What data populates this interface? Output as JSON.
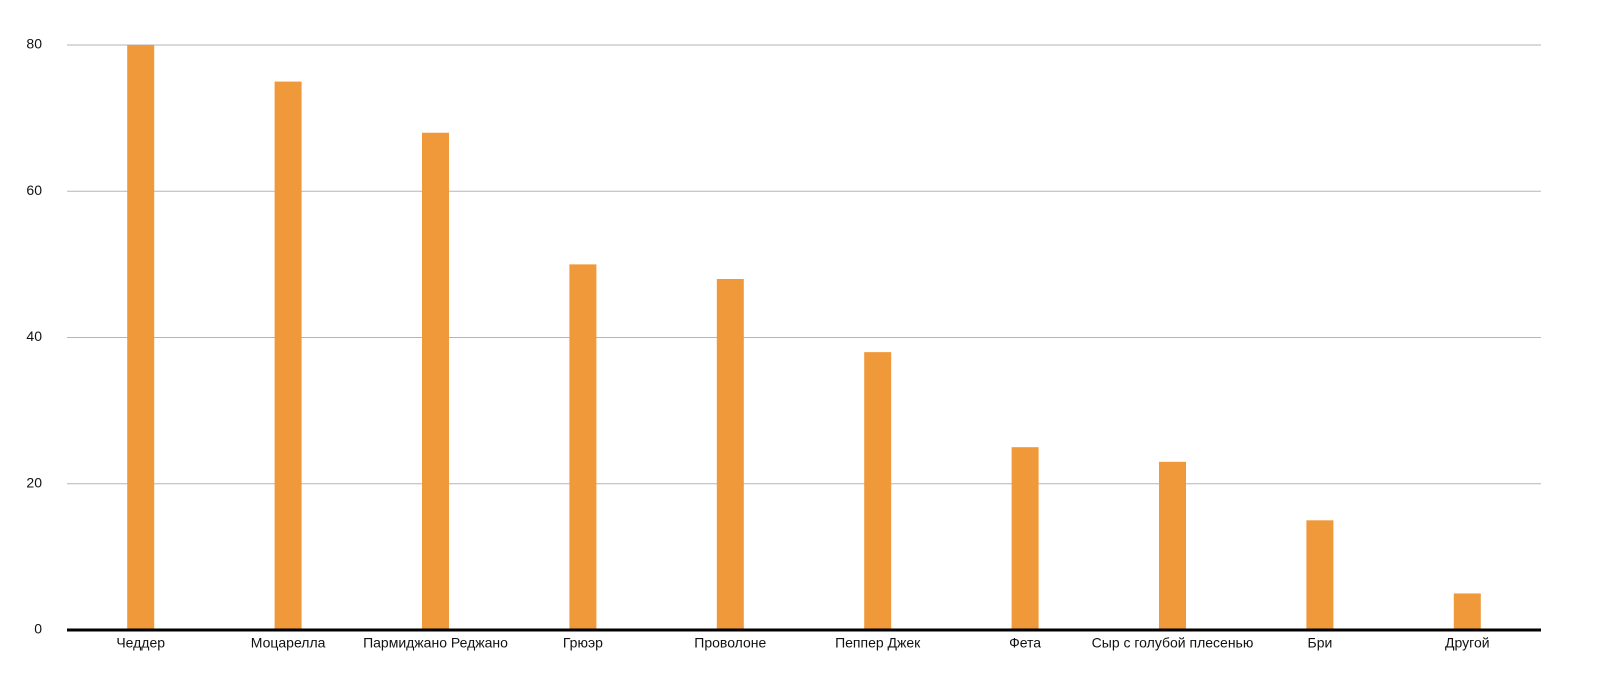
{
  "chart_data": {
    "type": "bar",
    "categories": [
      "Чеддер",
      "Моцарелла",
      "Пармиджано Реджано",
      "Грюэр",
      "Проволоне",
      "Пеппер Джек",
      "Фета",
      "Сыр с голубой плесенью",
      "Бри",
      "Другой"
    ],
    "values": [
      80,
      75,
      68,
      50,
      48,
      38,
      25,
      23,
      15,
      5
    ],
    "color": "#f0993a",
    "ylim": [
      0,
      80
    ],
    "yticks": [
      0,
      20,
      40,
      60,
      80
    ],
    "grid": true
  }
}
